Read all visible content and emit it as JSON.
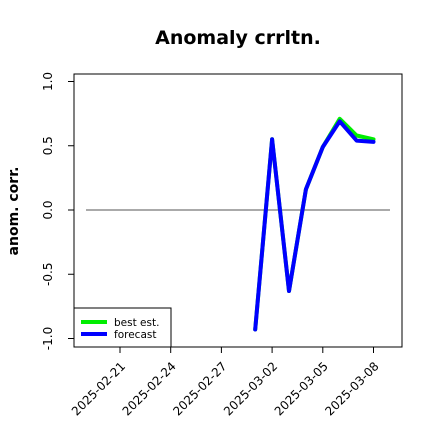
{
  "chart_data": {
    "type": "line",
    "title": "Anomaly crrltn.",
    "xlabel": "",
    "ylabel": "anom. corr.",
    "ylim": [
      -1.0,
      1.0
    ],
    "xlim": [
      "2025-02-19",
      "2025-03-10"
    ],
    "grid": false,
    "legend_position": "bottom-left",
    "reference_line": 0.0,
    "x_ticks": [
      {
        "label": "2025-02-21",
        "color": "#000000"
      },
      {
        "label": "2025-02-24",
        "color": "#000000"
      },
      {
        "label": "2025-02-27",
        "color": "#228B22"
      },
      {
        "label": "2025-03-02",
        "color": "#000000"
      },
      {
        "label": "2025-03-05",
        "color": "#000000"
      },
      {
        "label": "2025-03-08",
        "color": "#000000"
      }
    ],
    "y_ticks": [
      "-1.0",
      "-0.5",
      "0.0",
      "0.5",
      "1.0"
    ],
    "series": [
      {
        "name": "best est.",
        "color": "#00ee00",
        "x": [
          "2025-03-01",
          "2025-03-02",
          "2025-03-03",
          "2025-03-04",
          "2025-03-05",
          "2025-03-06",
          "2025-03-07",
          "2025-03-08"
        ],
        "values": [
          -0.93,
          0.55,
          -0.63,
          0.16,
          0.49,
          0.71,
          0.58,
          0.55
        ]
      },
      {
        "name": "forecast",
        "color": "#0000ff",
        "x": [
          "2025-03-01",
          "2025-03-02",
          "2025-03-03",
          "2025-03-04",
          "2025-03-05",
          "2025-03-06",
          "2025-03-07",
          "2025-03-08"
        ],
        "values": [
          -0.93,
          0.55,
          -0.63,
          0.16,
          0.49,
          0.69,
          0.54,
          0.53
        ]
      }
    ]
  }
}
